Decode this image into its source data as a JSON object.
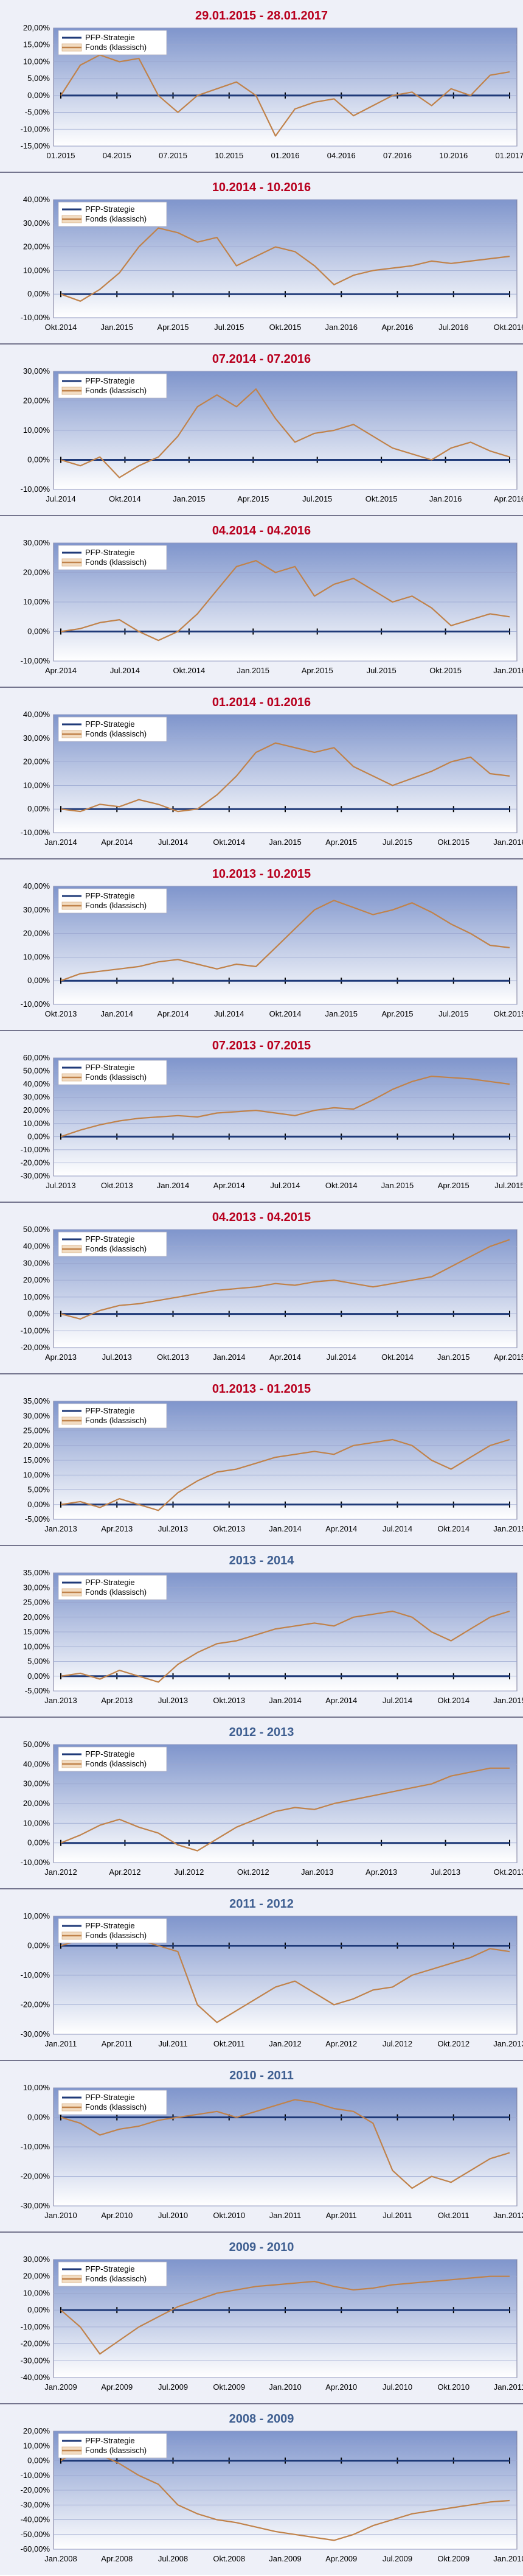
{
  "colors": {
    "pfp": "#1f3a78",
    "fonds": "#c0824a",
    "title_red": "#b8001e",
    "title_blue": "#3f5f91",
    "plot_top": "#7f95cc",
    "plot_bottom": "#ffffff"
  },
  "legend": {
    "pfp": "PFP-Strategie",
    "fonds": "Fonds (klassisch)"
  },
  "chart_data": [
    {
      "type": "line",
      "title": "29.01.2015 - 28.01.2017",
      "title_color": "red",
      "x_labels": [
        "01.2015",
        "04.2015",
        "07.2015",
        "10.2015",
        "01.2016",
        "04.2016",
        "07.2016",
        "10.2016",
        "01.2017"
      ],
      "y_ticks": [
        "20,00%",
        "15,00%",
        "10,00%",
        "5,00%",
        "0,00%",
        "-5,00%",
        "-10,00%",
        "-15,00%"
      ],
      "ylim": [
        -15,
        20
      ],
      "series": [
        {
          "name": "PFP-Strategie",
          "values": [
            0,
            0,
            0,
            0,
            0,
            0,
            0,
            0,
            0
          ]
        },
        {
          "name": "Fonds (klassisch)",
          "values": [
            0,
            9,
            12,
            10,
            11,
            0,
            -5,
            0,
            2,
            4,
            0,
            -12,
            -4,
            -2,
            -1,
            -6,
            -3,
            0,
            1,
            -3,
            2,
            0,
            6,
            7
          ]
        }
      ]
    },
    {
      "type": "line",
      "title": "10.2014 - 10.2016",
      "title_color": "red",
      "x_labels": [
        "Okt.2014",
        "Jan.2015",
        "Apr.2015",
        "Jul.2015",
        "Okt.2015",
        "Jan.2016",
        "Apr.2016",
        "Jul.2016",
        "Okt.2016"
      ],
      "y_ticks": [
        "40,00%",
        "30,00%",
        "20,00%",
        "10,00%",
        "0,00%",
        "-10,00%"
      ],
      "ylim": [
        -10,
        40
      ],
      "series": [
        {
          "name": "PFP-Strategie",
          "values": [
            0,
            0,
            0,
            0,
            0,
            0,
            0,
            0,
            0
          ]
        },
        {
          "name": "Fonds (klassisch)",
          "values": [
            0,
            -3,
            2,
            9,
            20,
            28,
            26,
            22,
            24,
            12,
            16,
            20,
            18,
            12,
            4,
            8,
            10,
            11,
            12,
            14,
            13,
            14,
            15,
            16
          ]
        }
      ]
    },
    {
      "type": "line",
      "title": "07.2014 - 07.2016",
      "title_color": "red",
      "x_labels": [
        "Jul.2014",
        "Okt.2014",
        "Jan.2015",
        "Apr.2015",
        "Jul.2015",
        "Okt.2015",
        "Jan.2016",
        "Apr.2016"
      ],
      "y_ticks": [
        "30,00%",
        "20,00%",
        "10,00%",
        "0,00%",
        "-10,00%"
      ],
      "ylim": [
        -10,
        30
      ],
      "series": [
        {
          "name": "PFP-Strategie",
          "values": [
            0,
            0,
            0,
            0,
            0,
            0,
            0,
            0,
            0
          ]
        },
        {
          "name": "Fonds (klassisch)",
          "values": [
            0,
            -2,
            1,
            -6,
            -2,
            1,
            8,
            18,
            22,
            18,
            24,
            14,
            6,
            9,
            10,
            12,
            8,
            4,
            2,
            0,
            4,
            6,
            3,
            1
          ]
        }
      ]
    },
    {
      "type": "line",
      "title": "04.2014 - 04.2016",
      "title_color": "red",
      "x_labels": [
        "Apr.2014",
        "Jul.2014",
        "Okt.2014",
        "Jan.2015",
        "Apr.2015",
        "Jul.2015",
        "Okt.2015",
        "Jan.2016"
      ],
      "y_ticks": [
        "30,00%",
        "20,00%",
        "10,00%",
        "0,00%",
        "-10,00%"
      ],
      "ylim": [
        -10,
        30
      ],
      "series": [
        {
          "name": "PFP-Strategie",
          "values": [
            0,
            0,
            0,
            0,
            0,
            0,
            0,
            0,
            0
          ]
        },
        {
          "name": "Fonds (klassisch)",
          "values": [
            0,
            1,
            3,
            4,
            0,
            -3,
            0,
            6,
            14,
            22,
            24,
            20,
            22,
            12,
            16,
            18,
            14,
            10,
            12,
            8,
            2,
            4,
            6,
            5
          ]
        }
      ]
    },
    {
      "type": "line",
      "title": "01.2014 - 01.2016",
      "title_color": "red",
      "x_labels": [
        "Jan.2014",
        "Apr.2014",
        "Jul.2014",
        "Okt.2014",
        "Jan.2015",
        "Apr.2015",
        "Jul.2015",
        "Okt.2015",
        "Jan.2016"
      ],
      "y_ticks": [
        "40,00%",
        "30,00%",
        "20,00%",
        "10,00%",
        "0,00%",
        "-10,00%"
      ],
      "ylim": [
        -10,
        40
      ],
      "series": [
        {
          "name": "PFP-Strategie",
          "values": [
            0,
            0,
            0,
            0,
            0,
            0,
            0,
            0,
            0
          ]
        },
        {
          "name": "Fonds (klassisch)",
          "values": [
            0,
            -1,
            2,
            1,
            4,
            2,
            -1,
            0,
            6,
            14,
            24,
            28,
            26,
            24,
            26,
            18,
            14,
            10,
            13,
            16,
            20,
            22,
            15,
            14
          ]
        }
      ]
    },
    {
      "type": "line",
      "title": "10.2013 - 10.2015",
      "title_color": "red",
      "x_labels": [
        "Okt.2013",
        "Jan.2014",
        "Apr.2014",
        "Jul.2014",
        "Okt.2014",
        "Jan.2015",
        "Apr.2015",
        "Jul.2015",
        "Okt.2015"
      ],
      "y_ticks": [
        "40,00%",
        "30,00%",
        "20,00%",
        "10,00%",
        "0,00%",
        "-10,00%"
      ],
      "ylim": [
        -10,
        40
      ],
      "series": [
        {
          "name": "PFP-Strategie",
          "values": [
            0,
            0,
            0,
            0,
            0,
            0,
            0,
            0,
            0
          ]
        },
        {
          "name": "Fonds (klassisch)",
          "values": [
            0,
            3,
            4,
            5,
            6,
            8,
            9,
            7,
            5,
            7,
            6,
            14,
            22,
            30,
            34,
            31,
            28,
            30,
            33,
            29,
            24,
            20,
            15,
            14
          ]
        }
      ]
    },
    {
      "type": "line",
      "title": "07.2013 - 07.2015",
      "title_color": "red",
      "x_labels": [
        "Jul.2013",
        "Okt.2013",
        "Jan.2014",
        "Apr.2014",
        "Jul.2014",
        "Okt.2014",
        "Jan.2015",
        "Apr.2015",
        "Jul.2015"
      ],
      "y_ticks": [
        "60,00%",
        "50,00%",
        "40,00%",
        "30,00%",
        "20,00%",
        "10,00%",
        "0,00%",
        "-10,00%",
        "-20,00%",
        "-30,00%"
      ],
      "ylim": [
        -30,
        60
      ],
      "series": [
        {
          "name": "PFP-Strategie",
          "values": [
            0,
            0,
            0,
            0,
            0,
            0,
            0,
            0,
            0
          ]
        },
        {
          "name": "Fonds (klassisch)",
          "values": [
            0,
            5,
            9,
            12,
            14,
            15,
            16,
            15,
            18,
            19,
            20,
            18,
            16,
            20,
            22,
            21,
            28,
            36,
            42,
            46,
            45,
            44,
            42,
            40
          ]
        }
      ]
    },
    {
      "type": "line",
      "title": "04.2013 - 04.2015",
      "title_color": "red",
      "x_labels": [
        "Apr.2013",
        "Jul.2013",
        "Okt.2013",
        "Jan.2014",
        "Apr.2014",
        "Jul.2014",
        "Okt.2014",
        "Jan.2015",
        "Apr.2015"
      ],
      "y_ticks": [
        "50,00%",
        "40,00%",
        "30,00%",
        "20,00%",
        "10,00%",
        "0,00%",
        "-10,00%",
        "-20,00%"
      ],
      "ylim": [
        -20,
        50
      ],
      "series": [
        {
          "name": "PFP-Strategie",
          "values": [
            0,
            0,
            0,
            0,
            0,
            0,
            0,
            0,
            0
          ]
        },
        {
          "name": "Fonds (klassisch)",
          "values": [
            0,
            -3,
            2,
            5,
            6,
            8,
            10,
            12,
            14,
            15,
            16,
            18,
            17,
            19,
            20,
            18,
            16,
            18,
            20,
            22,
            28,
            34,
            40,
            44
          ]
        }
      ]
    },
    {
      "type": "line",
      "title": "01.2013 - 01.2015",
      "title_color": "red",
      "x_labels": [
        "Jan.2013",
        "Apr.2013",
        "Jul.2013",
        "Okt.2013",
        "Jan.2014",
        "Apr.2014",
        "Jul.2014",
        "Okt.2014",
        "Jan.2015"
      ],
      "y_ticks": [
        "35,00%",
        "30,00%",
        "25,00%",
        "20,00%",
        "15,00%",
        "10,00%",
        "5,00%",
        "0,00%",
        "-5,00%"
      ],
      "ylim": [
        -5,
        35
      ],
      "series": [
        {
          "name": "PFP-Strategie",
          "values": [
            0,
            0,
            0,
            0,
            0,
            0,
            0,
            0,
            0
          ]
        },
        {
          "name": "Fonds (klassisch)",
          "values": [
            0,
            1,
            -1,
            2,
            0,
            -2,
            4,
            8,
            11,
            12,
            14,
            16,
            17,
            18,
            17,
            20,
            21,
            22,
            20,
            15,
            12,
            16,
            20,
            22
          ]
        }
      ]
    },
    {
      "type": "line",
      "title": "2013 - 2014",
      "title_color": "blue",
      "x_labels": [
        "Jan.2013",
        "Apr.2013",
        "Jul.2013",
        "Okt.2013",
        "Jan.2014",
        "Apr.2014",
        "Jul.2014",
        "Okt.2014",
        "Jan.2015"
      ],
      "y_ticks": [
        "35,00%",
        "30,00%",
        "25,00%",
        "20,00%",
        "15,00%",
        "10,00%",
        "5,00%",
        "0,00%",
        "-5,00%"
      ],
      "ylim": [
        -5,
        35
      ],
      "series": [
        {
          "name": "PFP-Strategie",
          "values": [
            0,
            0,
            0,
            0,
            0,
            0,
            0,
            0,
            0
          ]
        },
        {
          "name": "Fonds (klassisch)",
          "values": [
            0,
            1,
            -1,
            2,
            0,
            -2,
            4,
            8,
            11,
            12,
            14,
            16,
            17,
            18,
            17,
            20,
            21,
            22,
            20,
            15,
            12,
            16,
            20,
            22
          ]
        }
      ]
    },
    {
      "type": "line",
      "title": "2012 - 2013",
      "title_color": "blue",
      "x_labels": [
        "Jan.2012",
        "Apr.2012",
        "Jul.2012",
        "Okt.2012",
        "Jan.2013",
        "Apr.2013",
        "Jul.2013",
        "Okt.2013"
      ],
      "y_ticks": [
        "50,00%",
        "40,00%",
        "30,00%",
        "20,00%",
        "10,00%",
        "0,00%",
        "-10,00%"
      ],
      "ylim": [
        -10,
        50
      ],
      "series": [
        {
          "name": "PFP-Strategie",
          "values": [
            0,
            0,
            0,
            0,
            0,
            0,
            0,
            0,
            0
          ]
        },
        {
          "name": "Fonds (klassisch)",
          "values": [
            0,
            4,
            9,
            12,
            8,
            5,
            -1,
            -4,
            2,
            8,
            12,
            16,
            18,
            17,
            20,
            22,
            24,
            26,
            28,
            30,
            34,
            36,
            38,
            38
          ]
        }
      ]
    },
    {
      "type": "line",
      "title": "2011 - 2012",
      "title_color": "blue",
      "x_labels": [
        "Jan.2011",
        "Apr.2011",
        "Jul.2011",
        "Okt.2011",
        "Jan.2012",
        "Apr.2012",
        "Jul.2012",
        "Okt.2012",
        "Jan.2013"
      ],
      "y_ticks": [
        "10,00%",
        "0,00%",
        "-10,00%",
        "-20,00%",
        "-30,00%"
      ],
      "ylim": [
        -30,
        10
      ],
      "series": [
        {
          "name": "PFP-Strategie",
          "values": [
            0,
            0,
            0,
            0,
            0,
            0,
            0,
            0,
            0
          ]
        },
        {
          "name": "Fonds (klassisch)",
          "values": [
            0,
            2,
            1,
            3,
            2,
            0,
            -2,
            -20,
            -26,
            -22,
            -18,
            -14,
            -12,
            -16,
            -20,
            -18,
            -15,
            -14,
            -10,
            -8,
            -6,
            -4,
            -1,
            -2
          ]
        }
      ]
    },
    {
      "type": "line",
      "title": "2010 - 2011",
      "title_color": "blue",
      "x_labels": [
        "Jan.2010",
        "Apr.2010",
        "Jul.2010",
        "Okt.2010",
        "Jan.2011",
        "Apr.2011",
        "Jul.2011",
        "Okt.2011",
        "Jan.2012"
      ],
      "y_ticks": [
        "10,00%",
        "0,00%",
        "-10,00%",
        "-20,00%",
        "-30,00%"
      ],
      "ylim": [
        -30,
        10
      ],
      "series": [
        {
          "name": "PFP-Strategie",
          "values": [
            0,
            0,
            0,
            0,
            0,
            0,
            0,
            0,
            0
          ]
        },
        {
          "name": "Fonds (klassisch)",
          "values": [
            0,
            -2,
            -6,
            -4,
            -3,
            -1,
            0,
            1,
            2,
            0,
            2,
            4,
            6,
            5,
            3,
            2,
            -2,
            -18,
            -24,
            -20,
            -22,
            -18,
            -14,
            -12
          ]
        }
      ]
    },
    {
      "type": "line",
      "title": "2009 - 2010",
      "title_color": "blue",
      "x_labels": [
        "Jan.2009",
        "Apr.2009",
        "Jul.2009",
        "Okt.2009",
        "Jan.2010",
        "Apr.2010",
        "Jul.2010",
        "Okt.2010",
        "Jan.2011"
      ],
      "y_ticks": [
        "30,00%",
        "20,00%",
        "10,00%",
        "0,00%",
        "-10,00%",
        "-20,00%",
        "-30,00%",
        "-40,00%"
      ],
      "ylim": [
        -40,
        30
      ],
      "series": [
        {
          "name": "PFP-Strategie",
          "values": [
            0,
            0,
            0,
            0,
            0,
            0,
            0,
            0,
            0
          ]
        },
        {
          "name": "Fonds (klassisch)",
          "values": [
            0,
            -10,
            -26,
            -18,
            -10,
            -4,
            2,
            6,
            10,
            12,
            14,
            15,
            16,
            17,
            14,
            12,
            13,
            15,
            16,
            17,
            18,
            19,
            20,
            20
          ]
        }
      ]
    },
    {
      "type": "line",
      "title": "2008 - 2009",
      "title_color": "blue",
      "x_labels": [
        "Jan.2008",
        "Apr.2008",
        "Jul.2008",
        "Okt.2008",
        "Jan.2009",
        "Apr.2009",
        "Jul.2009",
        "Okt.2009",
        "Jan.2010"
      ],
      "y_ticks": [
        "20,00%",
        "10,00%",
        "0,00%",
        "-10,00%",
        "-20,00%",
        "-30,00%",
        "-40,00%",
        "-50,00%",
        "-60,00%"
      ],
      "ylim": [
        -60,
        20
      ],
      "series": [
        {
          "name": "PFP-Strategie",
          "values": [
            0,
            0,
            0,
            0,
            0,
            0,
            0,
            0,
            0
          ]
        },
        {
          "name": "Fonds (klassisch)",
          "values": [
            0,
            8,
            4,
            -2,
            -10,
            -16,
            -30,
            -36,
            -40,
            -42,
            -45,
            -48,
            -50,
            -52,
            -54,
            -50,
            -44,
            -40,
            -36,
            -34,
            -32,
            -30,
            -28,
            -27
          ]
        }
      ]
    }
  ]
}
